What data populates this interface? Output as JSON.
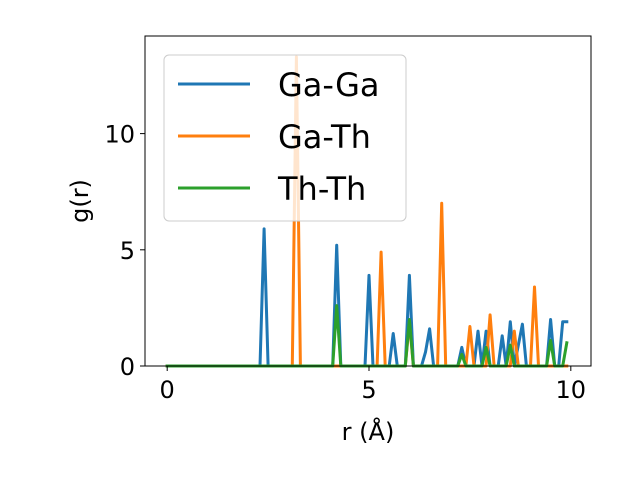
{
  "chart_data": {
    "type": "line",
    "title": "",
    "xlabel": "r (Å)",
    "ylabel": "g(r)",
    "xlim": [
      -0.55,
      10.5
    ],
    "ylim": [
      0,
      14.2
    ],
    "xticks": [
      0,
      5,
      10
    ],
    "yticks": [
      0,
      5,
      10
    ],
    "x_tick_labels": [
      "0",
      "5",
      "10"
    ],
    "y_tick_labels": [
      "0",
      "5",
      "10"
    ],
    "grid": false,
    "legend_position": "upper left",
    "series": [
      {
        "name": "Ga-Ga",
        "color": "#1f77b4",
        "points": [
          [
            0,
            0
          ],
          [
            2.3,
            0
          ],
          [
            2.4,
            5.9
          ],
          [
            2.5,
            0
          ],
          [
            4.1,
            0
          ],
          [
            4.2,
            5.2
          ],
          [
            4.3,
            0
          ],
          [
            4.9,
            0
          ],
          [
            5.0,
            3.9
          ],
          [
            5.1,
            0
          ],
          [
            5.5,
            0
          ],
          [
            5.6,
            1.4
          ],
          [
            5.7,
            0
          ],
          [
            5.9,
            0
          ],
          [
            6.0,
            3.9
          ],
          [
            6.1,
            0
          ],
          [
            6.3,
            0
          ],
          [
            6.4,
            0.6
          ],
          [
            6.5,
            1.6
          ],
          [
            6.6,
            0
          ],
          [
            7.2,
            0
          ],
          [
            7.3,
            0.8
          ],
          [
            7.4,
            0
          ],
          [
            7.6,
            0
          ],
          [
            7.7,
            1.5
          ],
          [
            7.8,
            0
          ],
          [
            7.9,
            1.5
          ],
          [
            8.0,
            0
          ],
          [
            8.2,
            0
          ],
          [
            8.3,
            1.3
          ],
          [
            8.4,
            0
          ],
          [
            8.5,
            1.9
          ],
          [
            8.6,
            0
          ],
          [
            8.8,
            1.8
          ],
          [
            8.9,
            0
          ],
          [
            9.4,
            0
          ],
          [
            9.5,
            2.0
          ],
          [
            9.6,
            0
          ],
          [
            9.7,
            0
          ],
          [
            9.8,
            1.9
          ],
          [
            9.9,
            1.9
          ]
        ]
      },
      {
        "name": "Ga-Th",
        "color": "#ff7f0e",
        "points": [
          [
            0,
            0
          ],
          [
            3.1,
            0
          ],
          [
            3.2,
            13.3
          ],
          [
            3.3,
            0
          ],
          [
            5.2,
            0
          ],
          [
            5.3,
            4.9
          ],
          [
            5.4,
            0
          ],
          [
            5.9,
            0
          ],
          [
            6.0,
            1.9
          ],
          [
            6.1,
            0
          ],
          [
            6.7,
            0
          ],
          [
            6.8,
            7.0
          ],
          [
            6.9,
            0
          ],
          [
            7.4,
            0
          ],
          [
            7.5,
            1.7
          ],
          [
            7.6,
            0
          ],
          [
            7.9,
            0
          ],
          [
            8.0,
            2.2
          ],
          [
            8.1,
            0
          ],
          [
            8.5,
            0
          ],
          [
            8.6,
            1.5
          ],
          [
            8.7,
            0
          ],
          [
            9.0,
            0
          ],
          [
            9.1,
            3.4
          ],
          [
            9.2,
            0
          ],
          [
            9.9,
            0
          ]
        ]
      },
      {
        "name": "Th-Th",
        "color": "#2ca02c",
        "points": [
          [
            0,
            0
          ],
          [
            4.1,
            0
          ],
          [
            4.2,
            2.6
          ],
          [
            4.3,
            0
          ],
          [
            5.9,
            0
          ],
          [
            6.0,
            2.0
          ],
          [
            6.1,
            0
          ],
          [
            7.2,
            0
          ],
          [
            7.3,
            0.5
          ],
          [
            7.4,
            0
          ],
          [
            7.8,
            0
          ],
          [
            7.9,
            0.8
          ],
          [
            8.0,
            0
          ],
          [
            8.4,
            0
          ],
          [
            8.5,
            0.9
          ],
          [
            8.6,
            0
          ],
          [
            9.4,
            0
          ],
          [
            9.5,
            1.1
          ],
          [
            9.6,
            0
          ],
          [
            9.8,
            0
          ],
          [
            9.9,
            1.0
          ]
        ]
      }
    ]
  }
}
